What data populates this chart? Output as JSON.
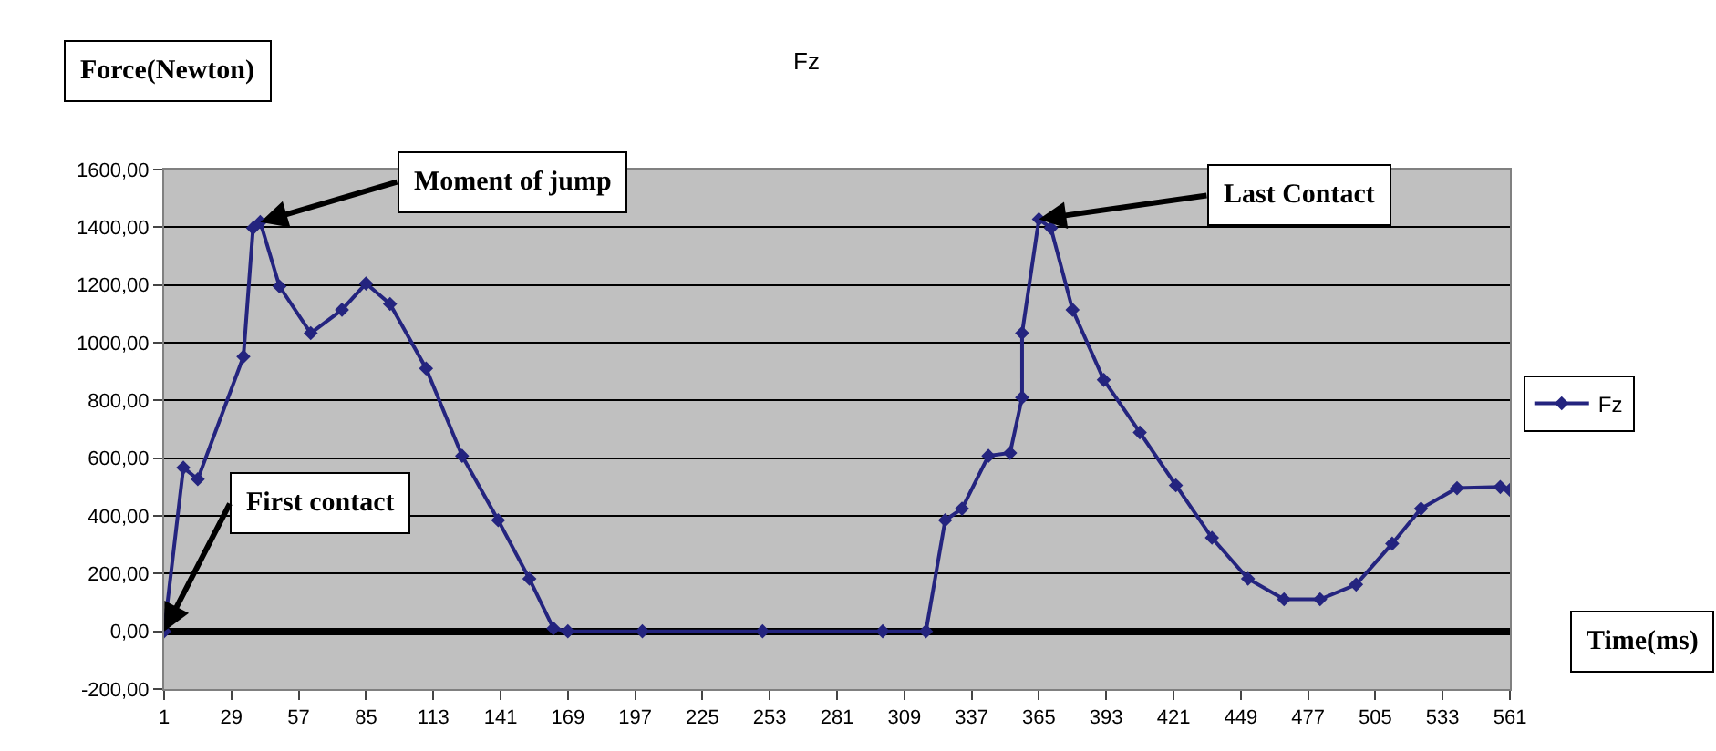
{
  "chart_data": {
    "type": "line",
    "title": "Fz",
    "xlabel": "Time(ms)",
    "ylabel": "Force(Newton)",
    "x": [
      1,
      9,
      15,
      34,
      38,
      41,
      49,
      62,
      75,
      85,
      95,
      110,
      125,
      140,
      153,
      163,
      169,
      200,
      250,
      300,
      318,
      326,
      333,
      344,
      353,
      358,
      358,
      365,
      370,
      379,
      392,
      407,
      422,
      437,
      452,
      467,
      482,
      497,
      512,
      524,
      539,
      557,
      561
    ],
    "series": [
      {
        "name": "Fz",
        "color": "#24247f",
        "values": [
          0,
          567,
          527,
          952,
          1397,
          1418,
          1195,
          1033,
          1114,
          1205,
          1134,
          911,
          608,
          385,
          182,
          10,
          0,
          0,
          0,
          0,
          0,
          385,
          425,
          608,
          618,
          810,
          1033,
          1428,
          1397,
          1114,
          871,
          689,
          506,
          324,
          182,
          111,
          111,
          162,
          304,
          425,
          496,
          500,
          490
        ]
      }
    ],
    "xlim": [
      1,
      561
    ],
    "xticks": [
      1,
      29,
      57,
      85,
      113,
      141,
      169,
      197,
      225,
      253,
      281,
      309,
      337,
      365,
      393,
      421,
      449,
      477,
      505,
      533,
      561
    ],
    "ylim": [
      -200,
      1600
    ],
    "yticks": [
      {
        "value": -200,
        "label": "-200,00"
      },
      {
        "value": 0,
        "label": "0,00"
      },
      {
        "value": 200,
        "label": "200,00"
      },
      {
        "value": 400,
        "label": "400,00"
      },
      {
        "value": 600,
        "label": "600,00"
      },
      {
        "value": 800,
        "label": "800,00"
      },
      {
        "value": 1000,
        "label": "1000,00"
      },
      {
        "value": 1200,
        "label": "1200,00"
      },
      {
        "value": 1400,
        "label": "1400,00"
      },
      {
        "value": 1600,
        "label": "1600,00"
      }
    ],
    "annotations": [
      {
        "text": "Moment of jump",
        "x": 41,
        "y": 1418
      },
      {
        "text": "First contact",
        "x": 1,
        "y": 0
      },
      {
        "text": "Last Contact",
        "x": 365,
        "y": 1428
      }
    ],
    "grid": "y",
    "legend": "right",
    "marker": "diamond",
    "line_style": "solid"
  }
}
